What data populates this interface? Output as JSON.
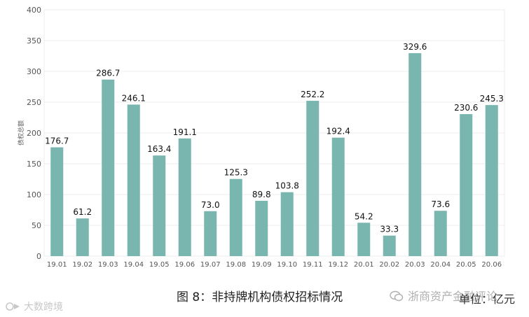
{
  "caption": "图 8：非持牌机构债权招标情况",
  "unit_label": "单位：亿元",
  "watermark_left": "大数跨境",
  "watermark_right": "浙商资产金融评论",
  "colors": {
    "bar": "#79b6b0",
    "grid": "#ececec",
    "axis_text": "#555555"
  },
  "chart_data": {
    "type": "bar",
    "ylabel": "债权总额",
    "xlabel": "",
    "ylim": [
      0,
      400
    ],
    "yticks": [
      0,
      50,
      100,
      150,
      200,
      250,
      300,
      350,
      400
    ],
    "grid": true,
    "categories": [
      "19.01",
      "19.02",
      "19.03",
      "19.04",
      "19.05",
      "19.06",
      "19.07",
      "19.08",
      "19.09",
      "19.10",
      "19.11",
      "19.12",
      "20.01",
      "20.02",
      "20.03",
      "20.04",
      "20.05",
      "20.06"
    ],
    "values": [
      176.7,
      61.2,
      286.7,
      246.1,
      163.4,
      191.1,
      73.0,
      125.3,
      89.8,
      103.8,
      252.2,
      192.4,
      54.2,
      33.3,
      329.6,
      73.6,
      230.6,
      245.3
    ],
    "data_labels": [
      "176.7",
      "61.2",
      "286.7",
      "246.1",
      "163.4",
      "191.1",
      "73.0",
      "125.3",
      "89.8",
      "103.8",
      "252.2",
      "192.4",
      "54.2",
      "33.3",
      "329.6",
      "73.6",
      "230.6",
      "245.3"
    ]
  }
}
